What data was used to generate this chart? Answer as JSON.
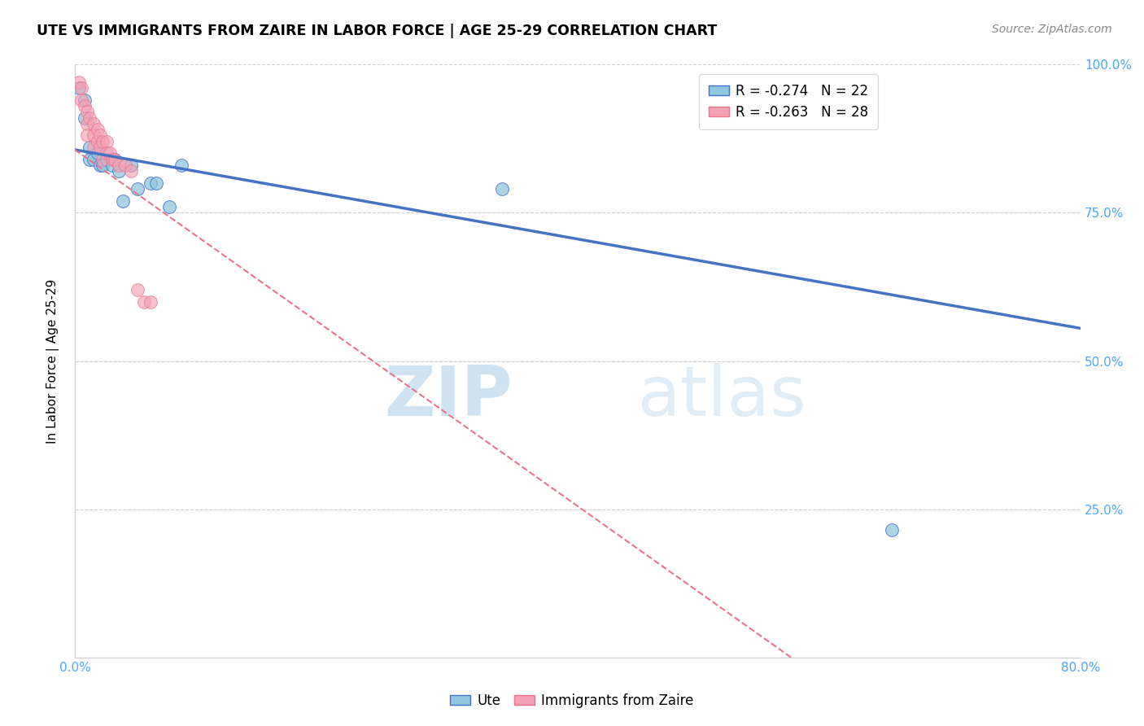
{
  "title": "UTE VS IMMIGRANTS FROM ZAIRE IN LABOR FORCE | AGE 25-29 CORRELATION CHART",
  "source_text": "Source: ZipAtlas.com",
  "ylabel": "In Labor Force | Age 25-29",
  "legend_label1": "Ute",
  "legend_label2": "Immigrants from Zaire",
  "r1": -0.274,
  "n1": 22,
  "r2": -0.263,
  "n2": 28,
  "xlim": [
    0.0,
    0.8
  ],
  "ylim": [
    0.0,
    1.0
  ],
  "xticklabels": [
    "0.0%",
    "",
    "",
    "",
    "",
    "",
    "",
    "",
    "80.0%"
  ],
  "yticklabels": [
    "",
    "25.0%",
    "50.0%",
    "75.0%",
    "100.0%"
  ],
  "color_ute": "#92c5de",
  "color_zaire": "#f4a0b5",
  "trendline_ute_color": "#4472c4",
  "trendline_zaire_color": "#e8758a",
  "watermark_zip": "ZIP",
  "watermark_atlas": "atlas",
  "ute_trendline": [
    [
      0.0,
      0.856
    ],
    [
      0.8,
      0.555
    ]
  ],
  "zaire_trendline": [
    [
      0.0,
      0.856
    ],
    [
      0.57,
      0.0
    ]
  ],
  "ute_x": [
    0.003,
    0.008,
    0.008,
    0.012,
    0.012,
    0.015,
    0.018,
    0.02,
    0.022,
    0.025,
    0.03,
    0.032,
    0.035,
    0.038,
    0.045,
    0.05,
    0.06,
    0.065,
    0.075,
    0.085,
    0.34,
    0.65
  ],
  "ute_y": [
    0.96,
    0.94,
    0.91,
    0.86,
    0.84,
    0.84,
    0.85,
    0.83,
    0.83,
    0.84,
    0.83,
    0.84,
    0.82,
    0.77,
    0.83,
    0.79,
    0.8,
    0.8,
    0.76,
    0.83,
    0.79,
    0.215
  ],
  "zaire_x": [
    0.003,
    0.005,
    0.005,
    0.008,
    0.01,
    0.01,
    0.01,
    0.012,
    0.015,
    0.015,
    0.015,
    0.018,
    0.018,
    0.02,
    0.02,
    0.022,
    0.022,
    0.025,
    0.025,
    0.028,
    0.03,
    0.032,
    0.035,
    0.04,
    0.045,
    0.05,
    0.055,
    0.06
  ],
  "zaire_y": [
    0.97,
    0.96,
    0.94,
    0.93,
    0.92,
    0.9,
    0.88,
    0.91,
    0.9,
    0.88,
    0.86,
    0.89,
    0.87,
    0.88,
    0.86,
    0.87,
    0.84,
    0.87,
    0.85,
    0.85,
    0.84,
    0.84,
    0.83,
    0.83,
    0.82,
    0.62,
    0.6,
    0.6
  ]
}
